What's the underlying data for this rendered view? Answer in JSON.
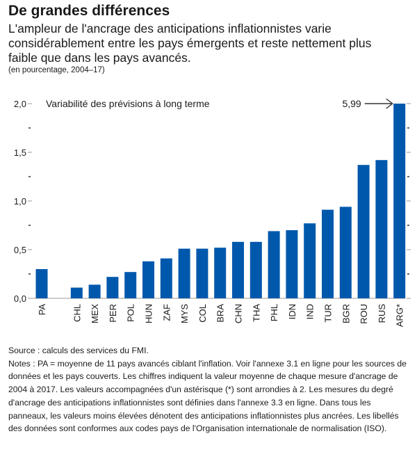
{
  "header": {
    "title": "De grandes différences",
    "subtitle": "L'ampleur de l'ancrage des anticipations inflationnistes varie considérablement entre les pays émergents et reste nettement plus faible que dans les pays avancés.",
    "units": "(en pourcentage, 2004–17)"
  },
  "chart_data": {
    "type": "bar",
    "title": "Variabilité des prévisions à long terme",
    "xlabel": "",
    "ylabel": "",
    "ylim": [
      0,
      2.0
    ],
    "yticks": [
      {
        "value": 0.0,
        "label": "0,0"
      },
      {
        "value": 0.5,
        "label": "0,5"
      },
      {
        "value": 1.0,
        "label": "1,0"
      },
      {
        "value": 1.5,
        "label": "1,5"
      },
      {
        "value": 2.0,
        "label": "2,0"
      }
    ],
    "minor_yticks": [
      0.25,
      0.75,
      1.25,
      1.75
    ],
    "grid": false,
    "bar_color": "#0058AC",
    "categories": [
      "PA",
      "CHL",
      "MEX",
      "PER",
      "POL",
      "HUN",
      "ZAF",
      "MYS",
      "COL",
      "BRA",
      "CHN",
      "THA",
      "PHL",
      "IDN",
      "IND",
      "TUR",
      "BGR",
      "ROU",
      "RUS",
      "ARG*"
    ],
    "values": [
      0.3,
      0.11,
      0.14,
      0.22,
      0.27,
      0.38,
      0.41,
      0.51,
      0.51,
      0.52,
      0.58,
      0.58,
      0.69,
      0.7,
      0.77,
      0.91,
      0.94,
      1.37,
      1.42,
      5.99
    ],
    "gap_after_index": 0,
    "annotations": [
      {
        "category": "ARG*",
        "text": "5,99",
        "note": "bar truncated at axis max; arrow points to bar top"
      }
    ]
  },
  "footer": {
    "source": "Source : calculs des services du FMI.",
    "notes": "Notes : PA = moyenne de 11 pays avancés ciblant l'inflation. Voir l'annexe 3.1 en ligne pour les sources de données et les pays couverts. Les chiffres indiquent la valeur moyenne de chaque mesure d'ancrage de 2004 à 2017. Les valeurs accompagnées d'un astérisque (*) sont arrondies à 2. Les mesures du degré d'ancrage des anticipations inflationnistes sont définies dans l'annexe 3.3 en ligne. Dans tous les panneaux, les valeurs moins élevées dénotent des anticipations inflationnistes plus ancrées. Les libellés des données sont conformes aux codes pays de l'Organisation internationale de normalisation (ISO)."
  }
}
